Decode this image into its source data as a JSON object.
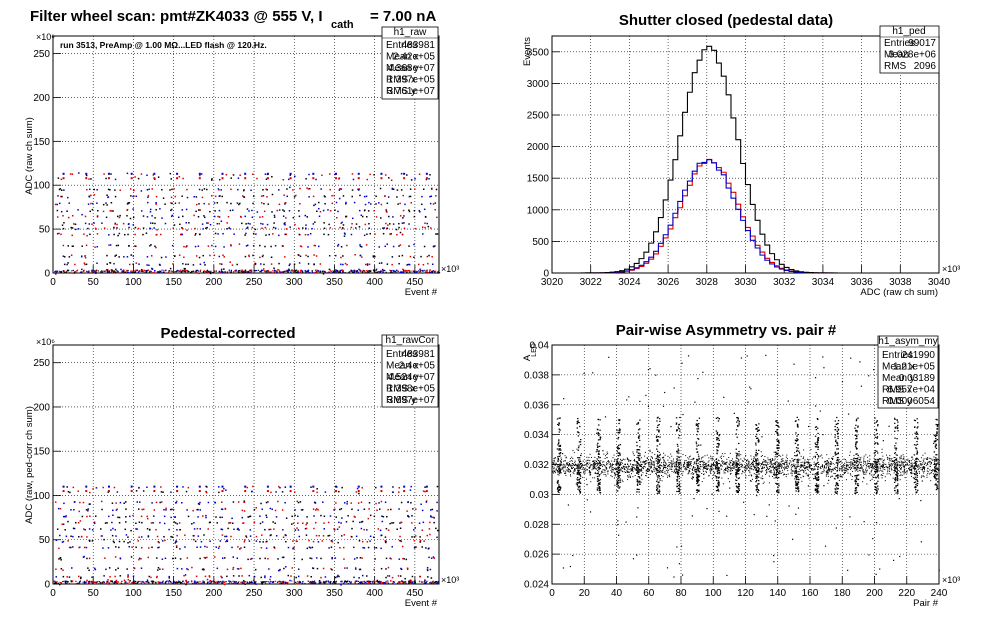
{
  "chart_data": [
    {
      "id": "raw",
      "type": "scatter",
      "title": "Filter wheel scan: pmt#ZK4033 @   555 V, I",
      "title_sub": "cath",
      "title_tail": "= 7.00 nA",
      "annotation": "run 3513, PreAmp @ 1.00 MΩ...LED flash @  120.Hz.",
      "xlabel": "Event #",
      "ylabel": "ADC (raw ch sum)",
      "xlim": [
        0,
        480
      ],
      "ylim": [
        0,
        270
      ],
      "x_ticks": [
        0,
        50,
        100,
        150,
        200,
        250,
        300,
        350,
        400,
        450
      ],
      "y_ticks": [
        0,
        50,
        100,
        150,
        200,
        250
      ],
      "x_exponent": "×10³",
      "y_exponent": "×10⁶",
      "series_colors": [
        "#0000cc",
        "#dd0000",
        "#000000"
      ],
      "stats": {
        "name": "h1_raw",
        "rows": [
          [
            "Entries",
            "483981"
          ],
          [
            "Mean x",
            "2.42e+05"
          ],
          [
            "Mean y",
            "4.368e+07"
          ],
          [
            "RMS x",
            "1.397e+05"
          ],
          [
            "RMS y",
            "3.761e+07"
          ]
        ]
      },
      "levels": [
        3,
        11,
        20,
        32,
        45,
        52,
        57,
        65,
        72,
        80,
        88,
        96,
        108,
        113
      ]
    },
    {
      "id": "ped",
      "type": "histogram",
      "title": "Shutter closed (pedestal data)",
      "xlabel": "ADC (raw ch sum)",
      "ylabel": "Events",
      "xlim": [
        3020,
        3040
      ],
      "ylim": [
        0,
        3750
      ],
      "x_ticks": [
        3020,
        3022,
        3024,
        3026,
        3028,
        3030,
        3032,
        3034,
        3036,
        3038,
        3040
      ],
      "y_ticks": [
        0,
        500,
        1000,
        1500,
        2000,
        2500,
        3000,
        3500
      ],
      "x_exponent": "×10³",
      "series_colors": [
        "#000000",
        "#dd0000",
        "#0000cc"
      ],
      "stats": {
        "name": "h1_ped",
        "rows": [
          [
            "Entries",
            "99017"
          ],
          [
            "Mean",
            "3.028e+06"
          ],
          [
            "RMS",
            "2096"
          ]
        ]
      },
      "mean": 3028.1,
      "rms": 2.096,
      "peak_total": 3560,
      "peak_half": 1780
    },
    {
      "id": "rawCor",
      "type": "scatter",
      "title": "Pedestal-corrected",
      "xlabel": "Event #",
      "ylabel": "ADC (raw, ped-corr ch sum)",
      "xlim": [
        0,
        480
      ],
      "ylim": [
        0,
        270
      ],
      "x_ticks": [
        0,
        50,
        100,
        150,
        200,
        250,
        300,
        350,
        400,
        450
      ],
      "y_ticks": [
        0,
        50,
        100,
        150,
        200,
        250
      ],
      "x_exponent": "×10³",
      "y_exponent": "×10⁶",
      "series_colors": [
        "#0000cc",
        "#dd0000",
        "#000000"
      ],
      "stats": {
        "name": "h1_rawCor",
        "rows": [
          [
            "Entries",
            "483981"
          ],
          [
            "Mean x",
            "2.4e+05"
          ],
          [
            "Mean y",
            "4.524e+07"
          ],
          [
            "RMS x",
            "1.398e+05"
          ],
          [
            "RMS y",
            "3.697e+07"
          ]
        ]
      },
      "levels": [
        3,
        9,
        18,
        30,
        42,
        49,
        55,
        63,
        70,
        77,
        85,
        93,
        105,
        110
      ]
    },
    {
      "id": "asym",
      "type": "scatter",
      "title": "Pair-wise Asymmetry vs. pair #",
      "xlabel": "Pair #",
      "ylabel": "A",
      "ylabel_sub": "LED",
      "xlim": [
        0,
        240
      ],
      "ylim": [
        0.024,
        0.04
      ],
      "x_ticks": [
        0,
        20,
        40,
        60,
        80,
        100,
        120,
        140,
        160,
        180,
        200,
        220,
        240
      ],
      "y_ticks": [
        0.024,
        0.026,
        0.028,
        0.03,
        0.032,
        0.034,
        0.036,
        0.038,
        0.04
      ],
      "x_exponent": "×10³",
      "series_colors": [
        "#000000"
      ],
      "stats": {
        "name": "h1_asym_my",
        "rows": [
          [
            "Entries",
            "241990"
          ],
          [
            "Mean x",
            "1.21e+05"
          ],
          [
            "Mean y",
            "0.03189"
          ],
          [
            "RMS x",
            "6.957e+04"
          ],
          [
            "RMS y",
            "0.0006054"
          ]
        ]
      },
      "band_center": 0.0319,
      "spike_period": 12.3
    }
  ]
}
